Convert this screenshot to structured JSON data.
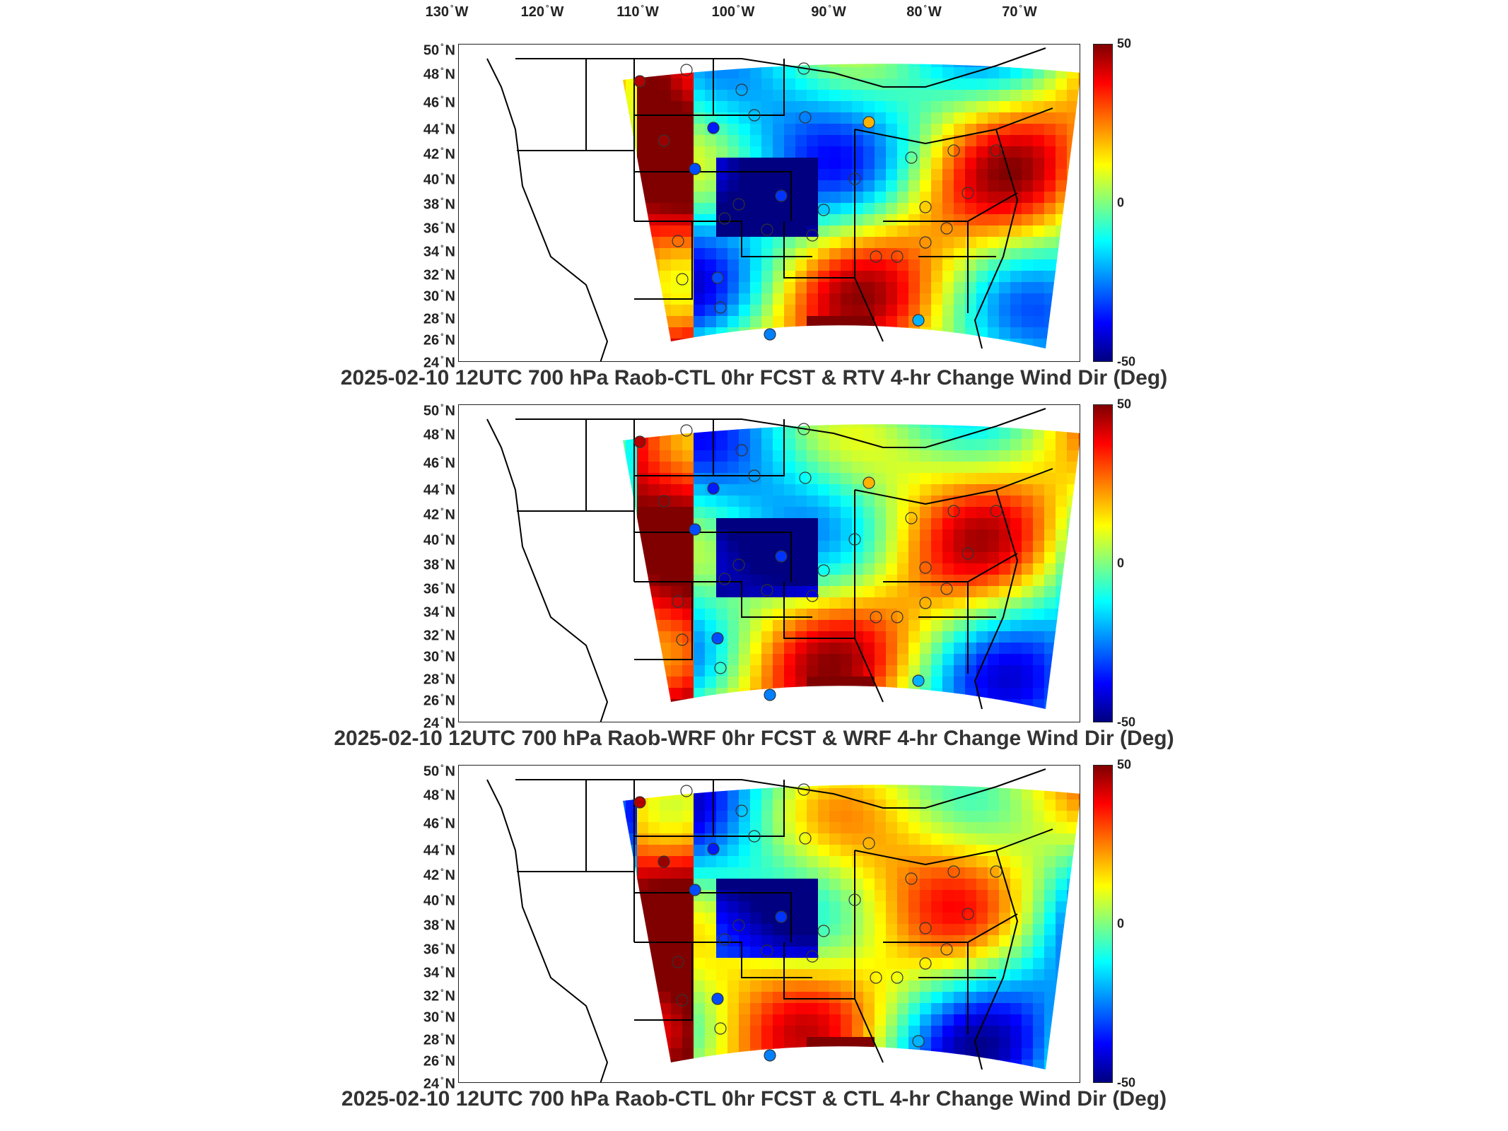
{
  "longitude_labels": [
    {
      "deg": "130",
      "hem": "W"
    },
    {
      "deg": "120",
      "hem": "W"
    },
    {
      "deg": "110",
      "hem": "W"
    },
    {
      "deg": "100",
      "hem": "W"
    },
    {
      "deg": "90",
      "hem": "W"
    },
    {
      "deg": "80",
      "hem": "W"
    },
    {
      "deg": "70",
      "hem": "W"
    }
  ],
  "latitude_labels": [
    {
      "deg": "50",
      "hem": "N"
    },
    {
      "deg": "48",
      "hem": "N"
    },
    {
      "deg": "46",
      "hem": "N"
    },
    {
      "deg": "44",
      "hem": "N"
    },
    {
      "deg": "42",
      "hem": "N"
    },
    {
      "deg": "40",
      "hem": "N"
    },
    {
      "deg": "38",
      "hem": "N"
    },
    {
      "deg": "36",
      "hem": "N"
    },
    {
      "deg": "34",
      "hem": "N"
    },
    {
      "deg": "32",
      "hem": "N"
    },
    {
      "deg": "30",
      "hem": "N"
    },
    {
      "deg": "28",
      "hem": "N"
    },
    {
      "deg": "26",
      "hem": "N"
    },
    {
      "deg": "24",
      "hem": "N"
    }
  ],
  "colorbar": {
    "max_label": "50",
    "mid_label": "0",
    "min_label": "-50",
    "range": [
      -50,
      50
    ],
    "colormap": "jet"
  },
  "panels": [
    {
      "title": "2025-02-10 12UTC 700 hPa Raob-CTL 0hr FCST & RTV 4-hr Change Wind Dir (Deg)"
    },
    {
      "title": "2025-02-10 12UTC 700 hPa Raob-WRF 0hr FCST & WRF 4-hr Change Wind Dir (Deg)"
    },
    {
      "title": "2025-02-10 12UTC 700 hPa Raob-CTL 0hr FCST & CTL 4-hr Change Wind Dir (Deg)"
    }
  ],
  "colors": {
    "jet_dark_red": "#7f0000",
    "jet_red": "#ff0000",
    "jet_orange": "#ff8000",
    "jet_yellow": "#ffff00",
    "jet_green": "#80ff80",
    "jet_cyan": "#00ffff",
    "jet_blue": "#0080ff",
    "jet_dark_blue": "#00007f",
    "boundary": "#000000"
  }
}
